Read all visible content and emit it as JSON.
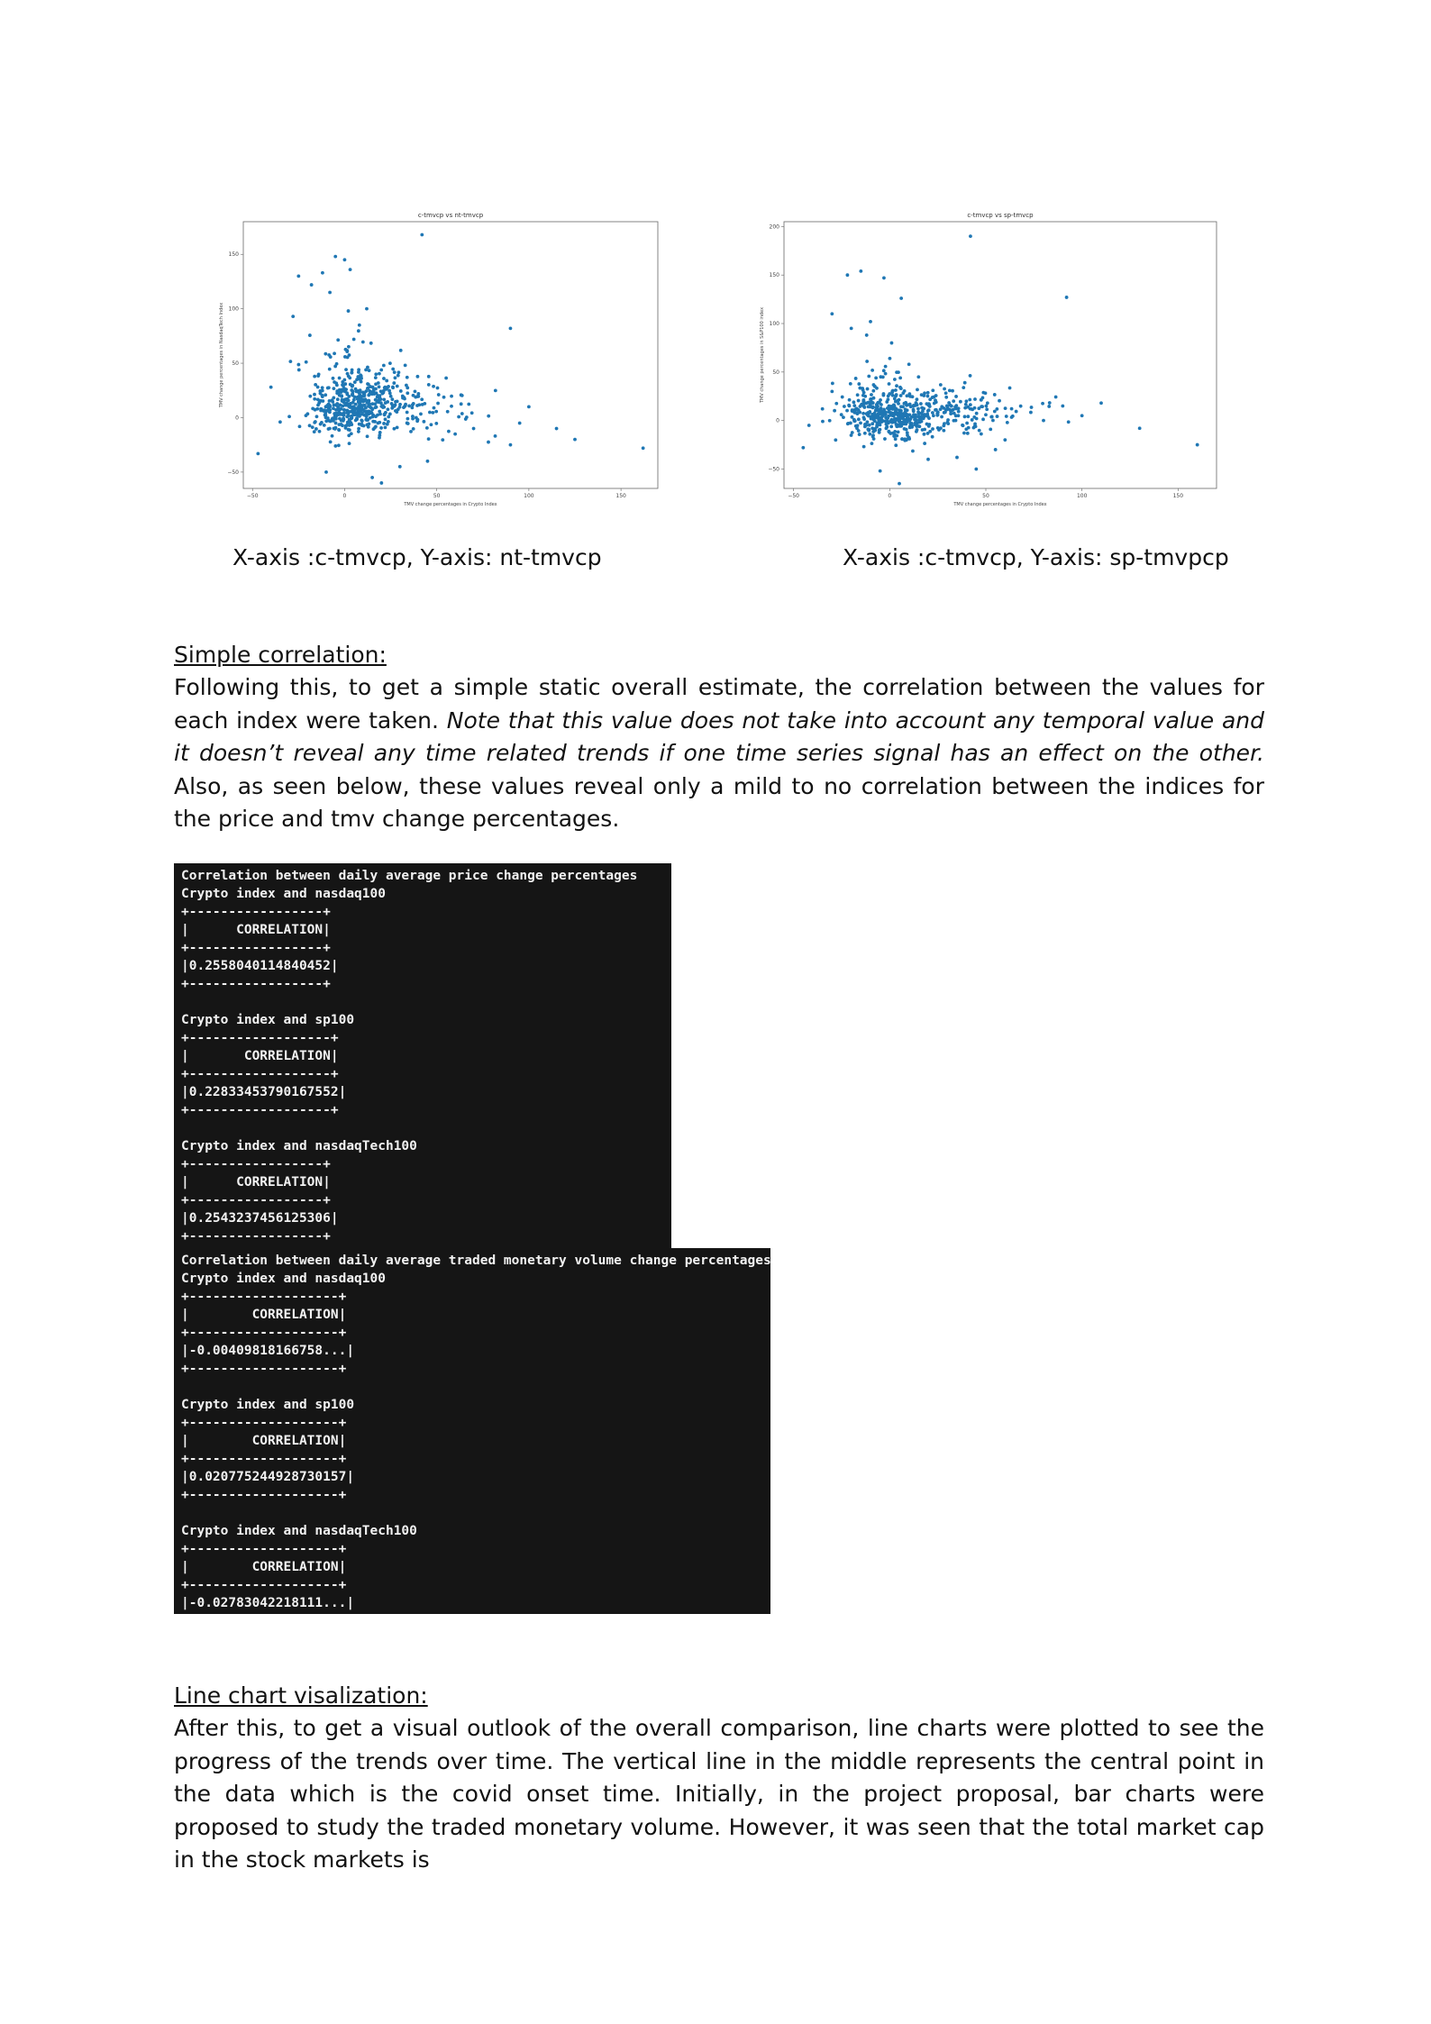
{
  "chart_data": [
    {
      "type": "scatter",
      "title": "c-tmvcp vs nt-tmvcp",
      "xlabel": "TMV change percentages in Crypto Index",
      "ylabel": "TMV change percentages in NasdaqTech Index",
      "xlim": [
        -55,
        170
      ],
      "ylim": [
        -65,
        180
      ],
      "xticks": [
        -50,
        0,
        50,
        100,
        150
      ],
      "yticks": [
        -50,
        0,
        50,
        100,
        150
      ],
      "color": "#1f77b4",
      "seed": 7,
      "outliers": [
        [
          42,
          168
        ],
        [
          -5,
          148
        ],
        [
          -12,
          133
        ],
        [
          0,
          145
        ],
        [
          3,
          136
        ],
        [
          -18,
          122
        ],
        [
          -25,
          130
        ],
        [
          -28,
          93
        ],
        [
          -8,
          115
        ],
        [
          2,
          98
        ],
        [
          8,
          85
        ],
        [
          12,
          100
        ],
        [
          5,
          72
        ],
        [
          90,
          82
        ],
        [
          -40,
          28
        ],
        [
          -47,
          -33
        ],
        [
          -35,
          -4
        ],
        [
          95,
          -5
        ],
        [
          100,
          10
        ],
        [
          90,
          -25
        ],
        [
          115,
          -10
        ],
        [
          125,
          -20
        ],
        [
          162,
          -28
        ],
        [
          70,
          -10
        ],
        [
          60,
          -15
        ],
        [
          45,
          -40
        ],
        [
          15,
          -55
        ],
        [
          -10,
          -50
        ],
        [
          20,
          -60
        ],
        [
          30,
          -45
        ]
      ],
      "clusters": [
        {
          "cx": 3,
          "cy": 8,
          "sx": 11,
          "sy": 12,
          "n": 340
        },
        {
          "cx": 22,
          "cy": 18,
          "sx": 14,
          "sy": 14,
          "n": 120
        },
        {
          "cx": 0,
          "cy": 45,
          "sx": 12,
          "sy": 18,
          "n": 55
        },
        {
          "cx": 45,
          "cy": 5,
          "sx": 18,
          "sy": 14,
          "n": 55
        }
      ]
    },
    {
      "type": "scatter",
      "title": "c-tmvcp vs sp-tmvcp",
      "xlabel": "TMV change percentages in Crypto Index",
      "ylabel": "TMV change percentages in S&P100 index",
      "xlim": [
        -55,
        170
      ],
      "ylim": [
        -70,
        205
      ],
      "xticks": [
        -50,
        0,
        50,
        100,
        150
      ],
      "yticks": [
        -50,
        0,
        50,
        100,
        150,
        200
      ],
      "color": "#1f77b4",
      "seed": 13,
      "outliers": [
        [
          42,
          190
        ],
        [
          -22,
          150
        ],
        [
          -15,
          154
        ],
        [
          -3,
          147
        ],
        [
          6,
          126
        ],
        [
          -30,
          110
        ],
        [
          -20,
          95
        ],
        [
          -12,
          88
        ],
        [
          -10,
          102
        ],
        [
          1,
          80
        ],
        [
          10,
          58
        ],
        [
          15,
          45
        ],
        [
          92,
          127
        ],
        [
          -45,
          -28
        ],
        [
          -42,
          -5
        ],
        [
          -35,
          12
        ],
        [
          -30,
          30
        ],
        [
          90,
          15
        ],
        [
          100,
          5
        ],
        [
          110,
          18
        ],
        [
          130,
          -8
        ],
        [
          160,
          -25
        ],
        [
          80,
          0
        ],
        [
          60,
          -20
        ],
        [
          55,
          -30
        ],
        [
          35,
          -38
        ],
        [
          20,
          -40
        ],
        [
          -5,
          -52
        ],
        [
          5,
          -65
        ],
        [
          45,
          -50
        ]
      ],
      "clusters": [
        {
          "cx": 0,
          "cy": 5,
          "sx": 12,
          "sy": 12,
          "n": 360
        },
        {
          "cx": 25,
          "cy": 8,
          "sx": 16,
          "sy": 12,
          "n": 120
        },
        {
          "cx": -5,
          "cy": 35,
          "sx": 10,
          "sy": 15,
          "n": 40
        },
        {
          "cx": 55,
          "cy": 12,
          "sx": 20,
          "sy": 10,
          "n": 60
        }
      ]
    }
  ],
  "captions": {
    "left": "X-axis :c-tmvcp, Y-axis: nt-tmvcp",
    "right": "X-axis :c-tmvcp, Y-axis: sp-tmvpcp"
  },
  "section1": {
    "heading": "Simple correlation:",
    "text_a": "Following this, to get a simple static overall estimate, the correlation between the values for each index were taken. ",
    "text_italic": "Note that this value does not take into account any temporal value and it doesn’t reveal any time related trends if one time series signal has an effect on the other.",
    "text_b": " Also, as seen below, these values reveal only a mild to no correlation between the indices for the price and tmv change percentages."
  },
  "terminal1": {
    "lines": [
      "Correlation between daily average price change percentages",
      "Crypto index and nasdaq100",
      "+-----------------+",
      "|      CORRELATION|",
      "+-----------------+",
      "|0.2558040114840452|",
      "+-----------------+",
      "",
      "Crypto index and sp100",
      "+------------------+",
      "|       CORRELATION|",
      "+------------------+",
      "|0.22833453790167552|",
      "+------------------+",
      "",
      "Crypto index and nasdaqTech100",
      "+-----------------+",
      "|      CORRELATION|",
      "+-----------------+",
      "|0.2543237456125306|",
      "+-----------------+"
    ]
  },
  "terminal2": {
    "lines": [
      "Correlation between daily average traded monetary volume change percentages",
      "Crypto index and nasdaq100",
      "+-------------------+",
      "|        CORRELATION|",
      "+-------------------+",
      "|-0.00409818166758...|",
      "+-------------------+",
      "",
      "Crypto index and sp100",
      "+-------------------+",
      "|        CORRELATION|",
      "+-------------------+",
      "|0.020775244928730157|",
      "+-------------------+",
      "",
      "Crypto index and nasdaqTech100",
      "+-------------------+",
      "|        CORRELATION|",
      "+-------------------+",
      "|-0.02783042218111...|",
      "+-------------------+"
    ]
  },
  "section2": {
    "heading": "Line chart visalization:",
    "text": "After this, to get a visual outlook of the overall comparison, line charts were plotted to see the progress of the trends over time. The vertical line in the middle represents the central point in the data which is the covid onset time. Initially, in the project proposal, bar charts were proposed to study the traded monetary volume. However, it was seen that the total market cap in the stock markets is"
  }
}
